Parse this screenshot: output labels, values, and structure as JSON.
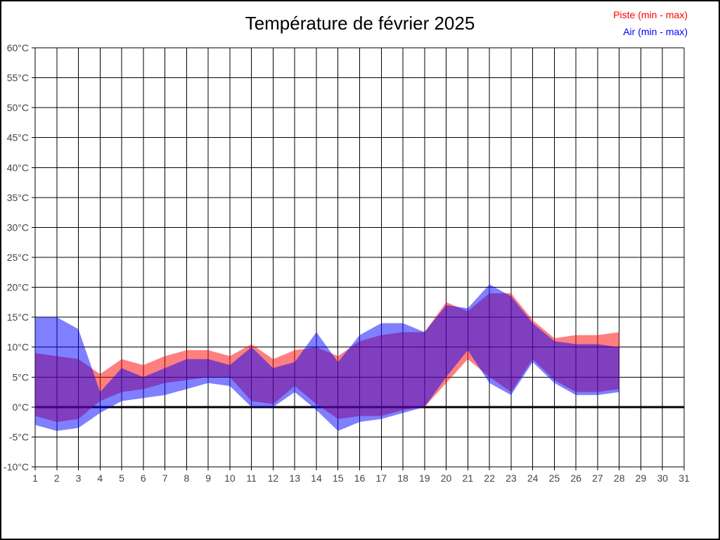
{
  "title": "Température de février 2025",
  "legend": {
    "items": [
      {
        "label": "Piste (min - max)",
        "color": "#ff0000"
      },
      {
        "label": "Air (min - max)",
        "color": "#0000ff"
      }
    ]
  },
  "axes": {
    "y_tick_suffix": "°C",
    "tick_label_color": "#444444",
    "grid_color": "#000000"
  },
  "chart_data": {
    "type": "area",
    "title": "Température de février 2025",
    "xlabel": "",
    "ylabel": "°C",
    "xlim": [
      1,
      31
    ],
    "ylim": [
      -10,
      60
    ],
    "x_ticks": [
      1,
      2,
      3,
      4,
      5,
      6,
      7,
      8,
      9,
      10,
      11,
      12,
      13,
      14,
      15,
      16,
      17,
      18,
      19,
      20,
      21,
      22,
      23,
      24,
      25,
      26,
      27,
      28,
      29,
      30,
      31
    ],
    "y_ticks": [
      60,
      55,
      50,
      45,
      40,
      35,
      30,
      25,
      20,
      15,
      10,
      5,
      0,
      -5,
      -10
    ],
    "grid": true,
    "zero_line": true,
    "legend_position": "top-right",
    "x": [
      1,
      2,
      3,
      4,
      5,
      6,
      7,
      8,
      9,
      10,
      11,
      12,
      13,
      14,
      15,
      16,
      17,
      18,
      19,
      20,
      21,
      22,
      23,
      24,
      25,
      26,
      27,
      28
    ],
    "series": [
      {
        "name": "Piste (min - max)",
        "color": "#ff0000",
        "fill_opacity": 0.5,
        "min": [
          -1.5,
          -2.5,
          -2,
          1,
          2.5,
          3,
          4,
          4.5,
          5,
          5,
          1,
          0.5,
          3.5,
          0.5,
          -2,
          -1.5,
          -1.5,
          -0.5,
          0,
          4,
          8,
          5,
          2.5,
          8,
          4.5,
          2.5,
          2.5,
          3
        ],
        "max": [
          9,
          8.5,
          8,
          5.5,
          8,
          7,
          8.5,
          9.5,
          9.5,
          8.5,
          10.5,
          8,
          9.5,
          10,
          8.5,
          11,
          12,
          12.5,
          12.5,
          17.5,
          16,
          19,
          19,
          14.5,
          11.5,
          12,
          12,
          12.5
        ]
      },
      {
        "name": "Air (min - max)",
        "color": "#0000ff",
        "fill_opacity": 0.5,
        "min": [
          -3,
          -4,
          -3.5,
          -1,
          1,
          1.5,
          2,
          3,
          4,
          3.5,
          0,
          0,
          2.5,
          -0.5,
          -4,
          -2.5,
          -2,
          -1,
          0,
          5,
          9.5,
          4,
          2,
          7.5,
          4,
          2,
          2,
          2.5
        ],
        "max": [
          15,
          15,
          13,
          2.5,
          6.5,
          5,
          6.5,
          8,
          8,
          7,
          10,
          6.5,
          7.5,
          12.5,
          7.5,
          12,
          14,
          14,
          12.5,
          17,
          16.5,
          20.5,
          18.5,
          14,
          11,
          10.5,
          10.5,
          10
        ]
      }
    ]
  }
}
